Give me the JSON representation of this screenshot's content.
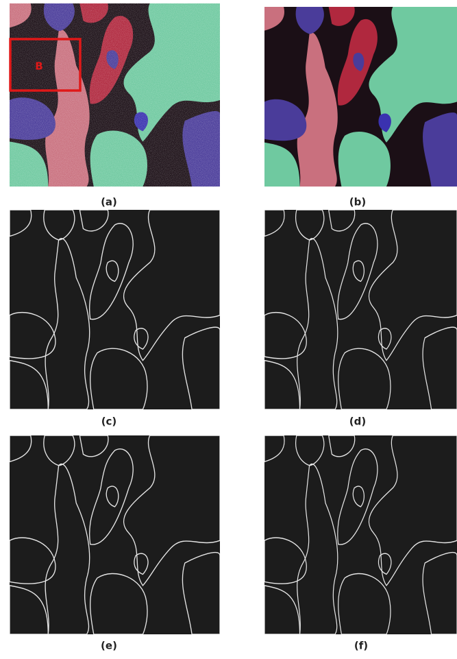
{
  "panels": [
    {
      "label": "(a)"
    },
    {
      "label": "(b)"
    },
    {
      "label": "(c)"
    },
    {
      "label": "(d)"
    },
    {
      "label": "(e)"
    },
    {
      "label": "(f)"
    }
  ],
  "annotation": "B"
}
